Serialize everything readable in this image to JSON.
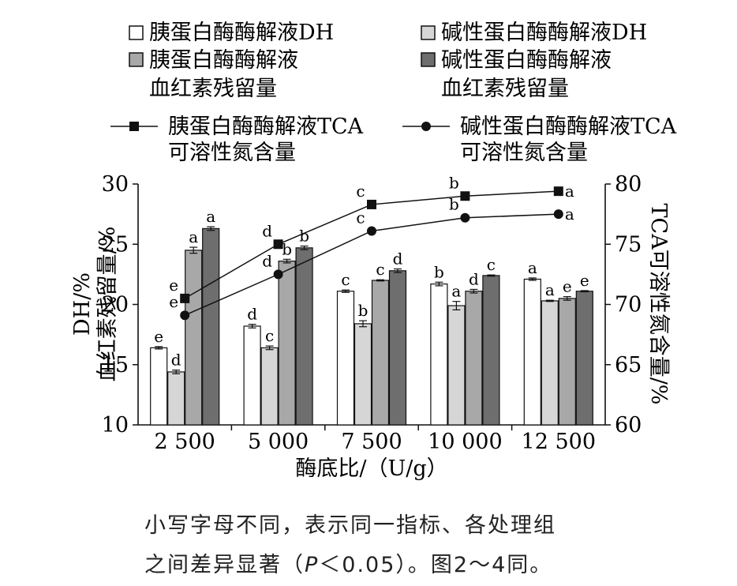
{
  "chart_data": {
    "type": "bar",
    "xlabel": "酶底比/（U/g）",
    "ylabel_left": "DH/%",
    "ylabel_left_2": "血红素残留量/%",
    "ylabel_right": "TCA可溶性氮含量/%",
    "categories": [
      "2 500",
      "5 000",
      "7 500",
      "10 000",
      "12 500"
    ],
    "ylim_left": [
      10,
      30
    ],
    "yticks_left": [
      "10",
      "15",
      "20",
      "25",
      "30"
    ],
    "ylim_right": [
      60,
      80
    ],
    "yticks_right": [
      "60",
      "65",
      "70",
      "75",
      "80"
    ],
    "grid": false,
    "legend_position": "top",
    "bar_series": [
      {
        "name": "胰蛋白酶酶解液DH",
        "color": "#ffffff",
        "values": [
          16.4,
          18.2,
          21.1,
          21.7,
          22.1
        ],
        "errors": [
          0.1,
          0.15,
          0.1,
          0.15,
          0.1
        ],
        "letters": [
          "e",
          "d",
          "c",
          "b",
          "a"
        ]
      },
      {
        "name": "碱性蛋白酶酶解液DH",
        "color": "#d6d6d6",
        "values": [
          14.4,
          16.4,
          18.4,
          19.9,
          20.3
        ],
        "errors": [
          0.15,
          0.15,
          0.25,
          0.35,
          0.05
        ],
        "letters": [
          "d",
          "c",
          "b",
          "a",
          "a"
        ]
      },
      {
        "name": "胰蛋白酶酶解液血红素残留量",
        "color": "#a8a8a8",
        "values": [
          24.5,
          23.6,
          22.0,
          21.1,
          20.5
        ],
        "errors": [
          0.25,
          0.15,
          0.05,
          0.15,
          0.15
        ],
        "letters": [
          "a",
          "b",
          "c",
          "d",
          "e"
        ]
      },
      {
        "name": "碱性蛋白酶酶解液血红素残留量",
        "color": "#6e6e6e",
        "values": [
          26.3,
          24.7,
          22.8,
          22.4,
          21.1
        ],
        "errors": [
          0.15,
          0.15,
          0.15,
          0.05,
          0.05
        ],
        "letters": [
          "a",
          "b",
          "d",
          "c",
          "e"
        ]
      }
    ],
    "line_series": [
      {
        "name": "胰蛋白酶酶解液TCA可溶性氮含量",
        "marker": "square",
        "values": [
          70.5,
          75.0,
          78.3,
          79.0,
          79.4
        ],
        "letters": [
          "e",
          "d",
          "c",
          "b",
          "a"
        ]
      },
      {
        "name": "碱性蛋白酶酶解液TCA可溶性氮含量",
        "marker": "circle",
        "values": [
          69.1,
          72.5,
          76.1,
          77.2,
          77.5
        ],
        "letters": [
          "e",
          "d",
          "c",
          "b",
          "a"
        ]
      }
    ],
    "legend": {
      "row1_left": "胰蛋白酶酶解液DH",
      "row1_right": "碱性蛋白酶酶解液DH",
      "row2_left_a": "胰蛋白酶酶解液",
      "row2_left_b": "血红素残留量",
      "row2_right_a": "碱性蛋白酶酶解液",
      "row2_right_b": "血红素残留量",
      "row3_left_a": "胰蛋白酶酶解液TCA",
      "row3_left_b": "可溶性氮含量",
      "row3_right_a": "碱性蛋白酶酶解液TCA",
      "row3_right_b": "可溶性氮含量"
    }
  },
  "caption": {
    "line1": "小写字母不同，表示同一指标、各处理组",
    "line2_before": "之间差异显著（",
    "line2_italic": "P",
    "line2_after": "＜0.05）。图2～4同。"
  }
}
